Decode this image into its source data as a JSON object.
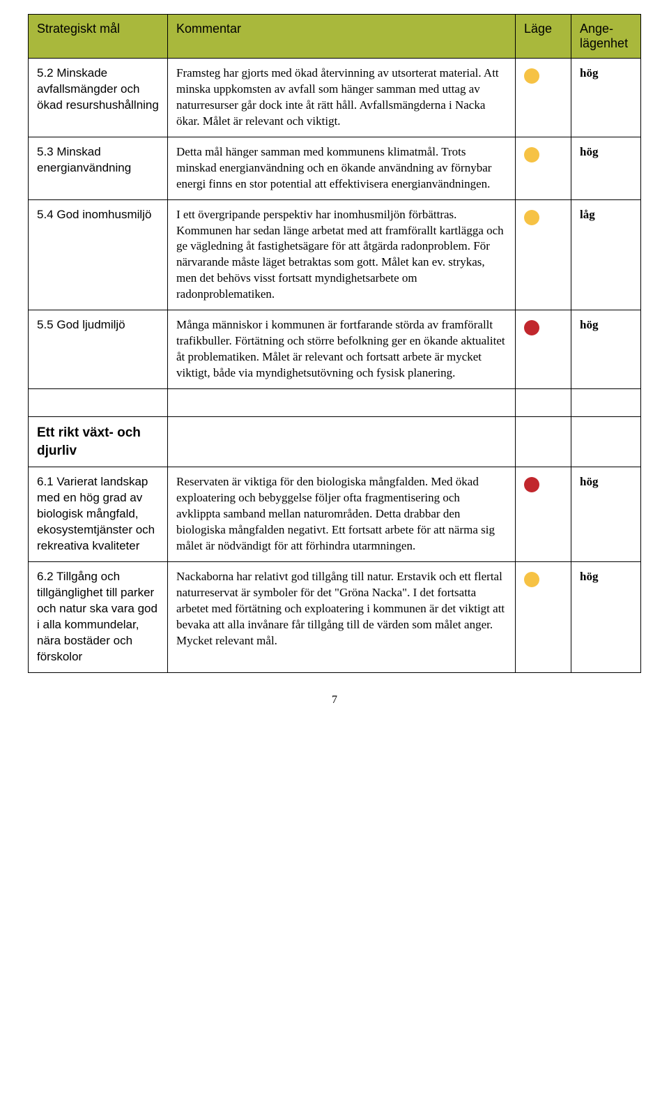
{
  "headers": {
    "goal": "Strategiskt mål",
    "comment": "Kommentar",
    "status": "Läge",
    "priority": "Ange-lägenhet"
  },
  "colors": {
    "header_bg": "#a9b83c",
    "yellow": "#f6c244",
    "red": "#c1272d",
    "border": "#000000"
  },
  "rows": [
    {
      "goal": "5.2 Minskade avfallsmängder och ökad resurshushållning",
      "comment": "Framsteg har gjorts med ökad återvinning av utsorterat material. Att minska uppkomsten av avfall som hänger samman med uttag av naturresurser går dock inte åt rätt håll. Avfallsmängderna i Nacka ökar. Målet är relevant och viktigt.",
      "status_color": "#f6c244",
      "priority": "hög"
    },
    {
      "goal": "5.3 Minskad energianvändning",
      "comment": "Detta mål hänger samman med kommunens klimatmål. Trots minskad energianvändning och en ökande användning av förnybar energi finns en stor potential att effektivisera energianvändningen.",
      "status_color": "#f6c244",
      "priority": "hög"
    },
    {
      "goal": "5.4 God inomhusmiljö",
      "comment": "I ett övergripande perspektiv har inomhusmiljön förbättras. Kommunen har sedan länge arbetat med att framförallt kartlägga och ge vägledning åt fastighetsägare för att åtgärda radonproblem. För närvarande måste läget betraktas som gott. Målet kan ev. strykas, men det behövs visst fortsatt myndighetsarbete om radonproblematiken.",
      "status_color": "#f6c244",
      "priority": "låg"
    },
    {
      "goal": "5.5 God ljudmiljö",
      "comment": "Många människor i kommunen är fortfarande störda av framförallt trafikbuller. Förtätning och större befolkning ger en ökande aktualitet åt problematiken. Målet är relevant och fortsatt arbete är mycket viktigt, både via myndighetsutövning och fysisk planering.",
      "status_color": "#c1272d",
      "priority": "hög"
    }
  ],
  "section2_title": "Ett rikt växt- och djurliv",
  "rows2": [
    {
      "goal": "6.1 Varierat landskap med en hög grad av biologisk mångfald, ekosystemtjänster och rekreativa kvaliteter",
      "comment": "Reservaten är viktiga för den biologiska mångfalden. Med ökad exploatering och bebyggelse följer ofta fragmentisering och avklippta samband mellan naturområden. Detta drabbar den biologiska mångfalden negativt. Ett fortsatt arbete för att närma sig målet är nödvändigt för att förhindra utarmningen.",
      "status_color": "#c1272d",
      "priority": "hög"
    },
    {
      "goal": "6.2 Tillgång och tillgänglighet till parker och natur ska vara god i alla kommundelar, nära bostäder och förskolor",
      "comment": "Nackaborna har relativt god tillgång till natur. Erstavik och ett flertal naturreservat är symboler för det \"Gröna Nacka\". I det fortsatta arbetet med förtätning och exploatering i kommunen är det viktigt att bevaka att alla invånare får tillgång till de värden som målet anger. Mycket relevant mål.",
      "status_color": "#f6c244",
      "priority": "hög"
    }
  ],
  "page_number": "7"
}
